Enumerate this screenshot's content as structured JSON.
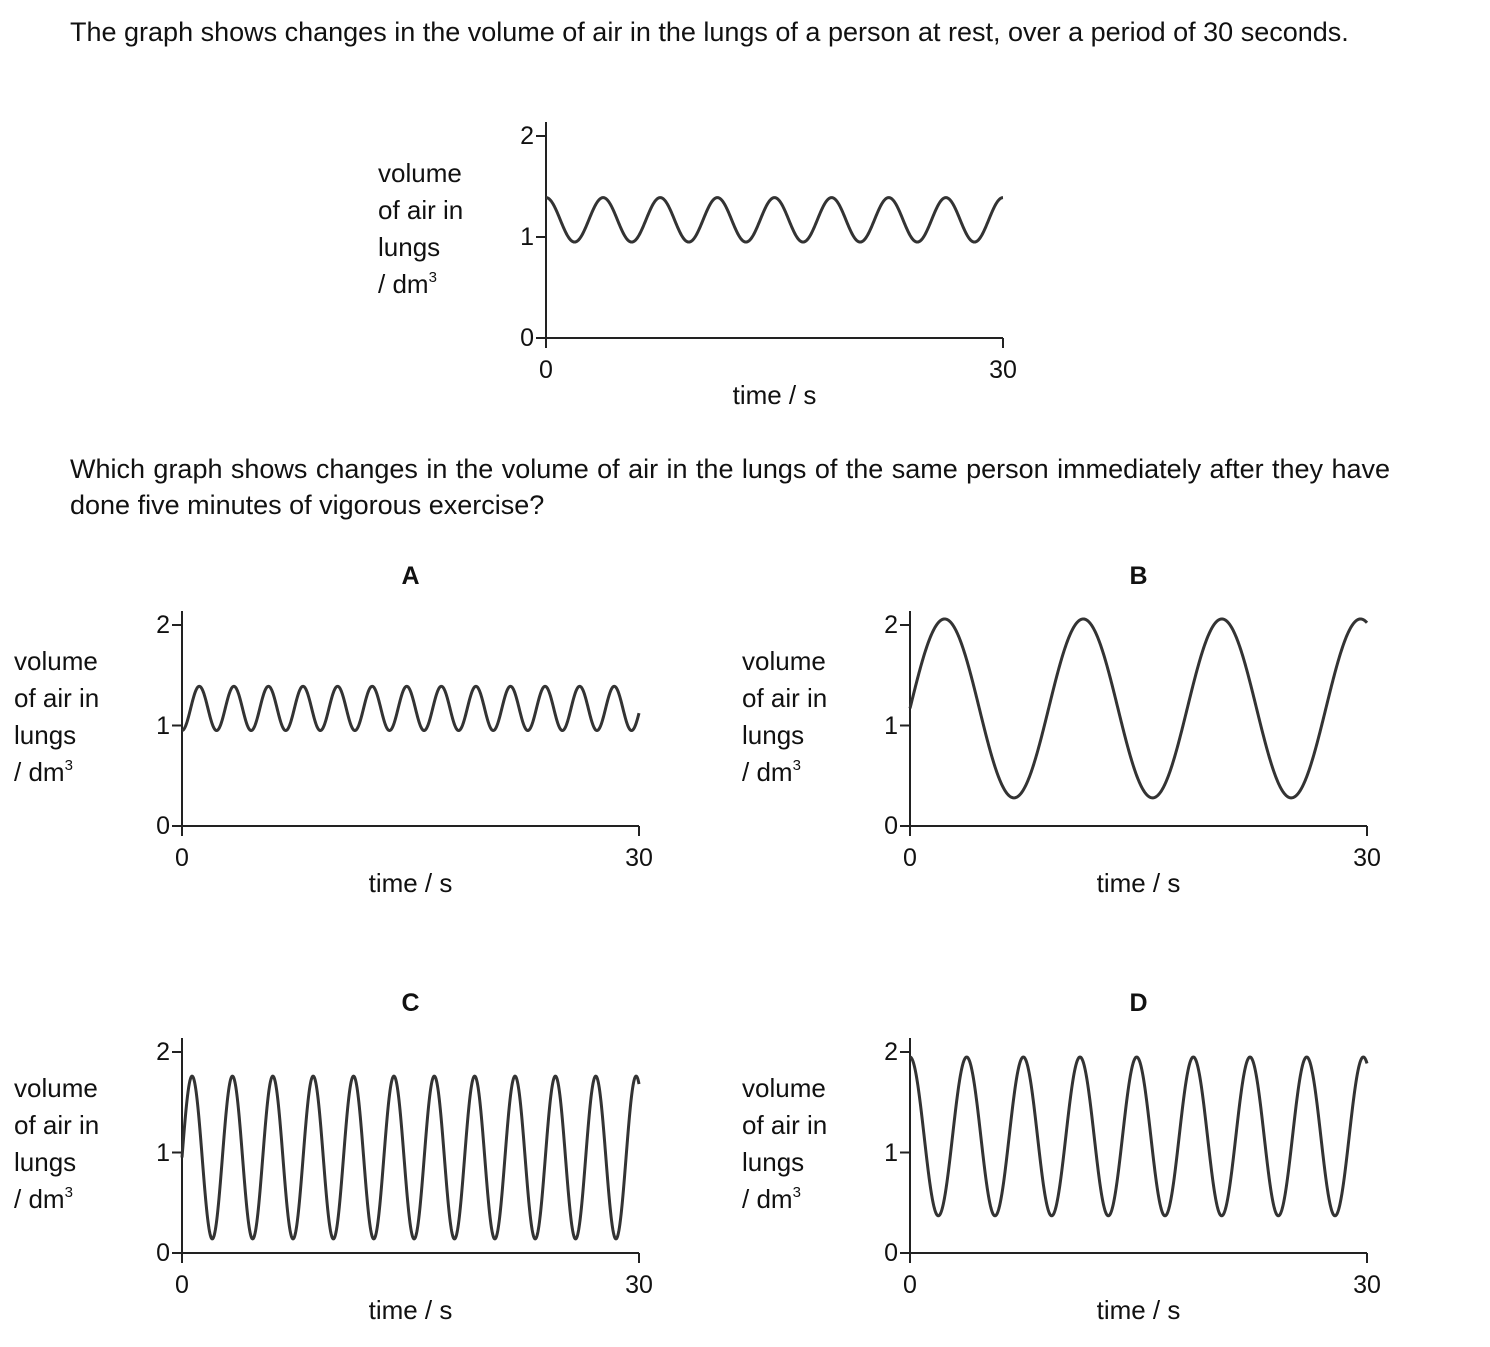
{
  "question": {
    "intro": "The graph shows changes in the volume of air in the lungs of a person at rest, over a period of 30 seconds.",
    "prompt": "Which graph shows changes in the volume of air in the lungs of the same person immediately after they have done five minutes of vigorous exercise?"
  },
  "axis_text": {
    "ylabel_lines": [
      "volume",
      "of air in",
      "lungs",
      "/ dm"
    ],
    "ylabel_sup": "3",
    "xlabel": "time / s",
    "y_ticks": [
      "0",
      "1",
      "2"
    ],
    "x_ticks": [
      "0",
      "30"
    ]
  },
  "chart_data": [
    {
      "id": "rest",
      "type": "line",
      "title": "",
      "xlabel": "time / s",
      "ylabel": "volume of air in lungs / dm3",
      "xlim": [
        0,
        30
      ],
      "ylim": [
        0,
        2
      ],
      "grid": false,
      "series": [
        {
          "center": 1.17,
          "amplitude": 0.22,
          "period": 3.75,
          "phase_start": "max",
          "x_end": 30
        }
      ]
    },
    {
      "id": "A",
      "type": "line",
      "title": "A",
      "xlabel": "time / s",
      "ylabel": "volume of air in lungs / dm3",
      "xlim": [
        0,
        30
      ],
      "ylim": [
        0,
        2
      ],
      "grid": false,
      "series": [
        {
          "center": 1.17,
          "amplitude": 0.22,
          "period": 2.27,
          "phase_start": "min",
          "x_end": 30
        }
      ]
    },
    {
      "id": "B",
      "type": "line",
      "title": "B",
      "xlabel": "time / s",
      "ylabel": "volume of air in lungs / dm3",
      "xlim": [
        0,
        30
      ],
      "ylim": [
        0,
        2
      ],
      "grid": false,
      "series": [
        {
          "center": 1.17,
          "amplitude": 0.89,
          "period": 9.1,
          "phase_start": "center-rising",
          "x_end": 30
        }
      ]
    },
    {
      "id": "C",
      "type": "line",
      "title": "C",
      "xlabel": "time / s",
      "ylabel": "volume of air in lungs / dm3",
      "xlim": [
        0,
        30
      ],
      "ylim": [
        0,
        2
      ],
      "grid": false,
      "series": [
        {
          "center": 0.95,
          "amplitude": 0.81,
          "period": 2.65,
          "phase_start": "center-rising",
          "x_end": 30
        }
      ]
    },
    {
      "id": "D",
      "type": "line",
      "title": "D",
      "xlabel": "time / s",
      "ylabel": "volume of air in lungs / dm3",
      "xlim": [
        0,
        30
      ],
      "ylim": [
        0,
        2
      ],
      "grid": false,
      "series": [
        {
          "center": 1.16,
          "amplitude": 0.79,
          "period": 3.72,
          "phase_start": "max",
          "x_end": 30
        }
      ]
    }
  ]
}
